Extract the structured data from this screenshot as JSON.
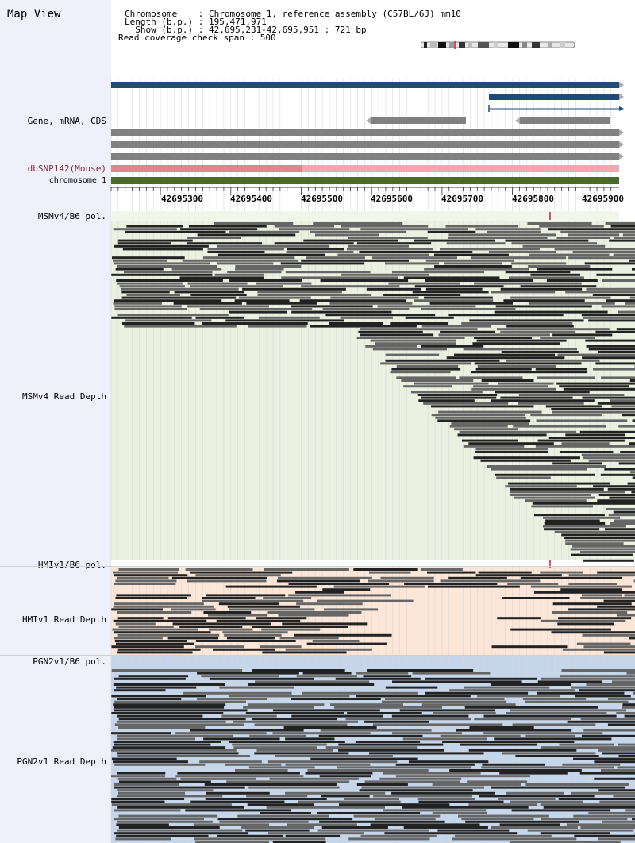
{
  "header": {
    "title": "Map View",
    "chromosome_line": "Chromosome    : Chromosome 1, reference assembly (C57BL/6J) mm10",
    "length_line": "Length (b.p.) : 195,471,971",
    "show_line": "  Show (b.p.) : 42,695,231-42,695,951 : 721 bp",
    "coverage_line": "Read coverage check span : 500"
  },
  "tracks": {
    "gene_label": "Gene, mRNA, CDS",
    "dbsnp_label": "dbSNP142(Mouse)",
    "chromosome_label": "chromosome 1",
    "msmv4_pol_label": "MSMv4/B6 pol.",
    "msmv4_depth_label": "MSMv4 Read Depth",
    "hmiv1_pol_label": "HMIv1/B6 pol.",
    "hmiv1_depth_label": "HMIv1 Read Depth",
    "pgn2v1_pol_label": "PGN2v1/B6 pol.",
    "pgn2v1_depth_label": "PGN2v1 Read Depth"
  },
  "scale": {
    "ticks": [
      "42695300",
      "42695400",
      "42695500",
      "42695600",
      "42695700",
      "42695800",
      "42695900"
    ]
  },
  "colors": {
    "gene_blue": "#1e4a7c",
    "feature_gray": "#808080",
    "snp_pink": "#f0a0a8",
    "snp_pink_dark": "#e8838d",
    "chromosome_green": "#4a6a2a",
    "msmv4_bg": "#ebf0e0",
    "hmiv1_bg": "#fbe6d7",
    "pgn2v1_bg": "#c5d5ea",
    "read_dark": "#222222",
    "read_mid": "#666666",
    "pol_mark": "#c0204a"
  }
}
